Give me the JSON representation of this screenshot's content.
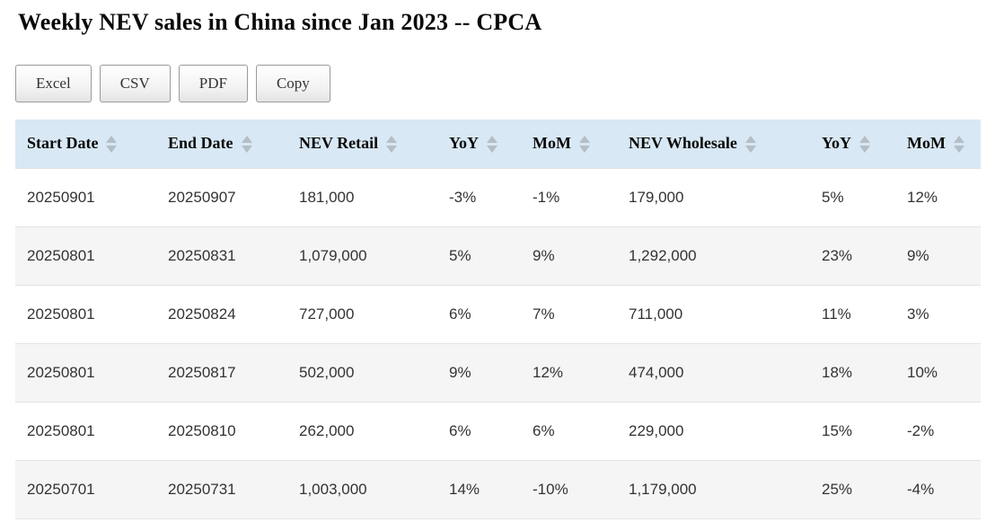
{
  "page": {
    "title": "Weekly NEV sales in China since Jan 2023 -- CPCA"
  },
  "toolbar": {
    "buttons": [
      {
        "label": "Excel"
      },
      {
        "label": "CSV"
      },
      {
        "label": "PDF"
      },
      {
        "label": "Copy"
      }
    ]
  },
  "table": {
    "columns": [
      "Start Date",
      "End Date",
      "NEV Retail",
      "YoY",
      "MoM",
      "NEV Wholesale",
      "YoY",
      "MoM"
    ],
    "sort_icon": "up-down-arrows",
    "rows": [
      [
        "20250901",
        "20250907",
        "181,000",
        "-3%",
        "-1%",
        "179,000",
        "5%",
        "12%"
      ],
      [
        "20250801",
        "20250831",
        "1,079,000",
        "5%",
        "9%",
        "1,292,000",
        "23%",
        "9%"
      ],
      [
        "20250801",
        "20250824",
        "727,000",
        "6%",
        "7%",
        "711,000",
        "11%",
        "3%"
      ],
      [
        "20250801",
        "20250817",
        "502,000",
        "9%",
        "12%",
        "474,000",
        "18%",
        "10%"
      ],
      [
        "20250801",
        "20250810",
        "262,000",
        "6%",
        "6%",
        "229,000",
        "15%",
        "-2%"
      ],
      [
        "20250701",
        "20250731",
        "1,003,000",
        "14%",
        "-10%",
        "1,179,000",
        "25%",
        "-4%"
      ]
    ]
  },
  "colors": {
    "header_bg": "#d8e8f4",
    "sort_arrow": "#b4bec6",
    "row_stripe": "#f5f5f5",
    "row_border": "#e3e3e3",
    "body_text": "#333333",
    "header_text": "#0a0a0a",
    "button_border": "#9a9a9a"
  }
}
